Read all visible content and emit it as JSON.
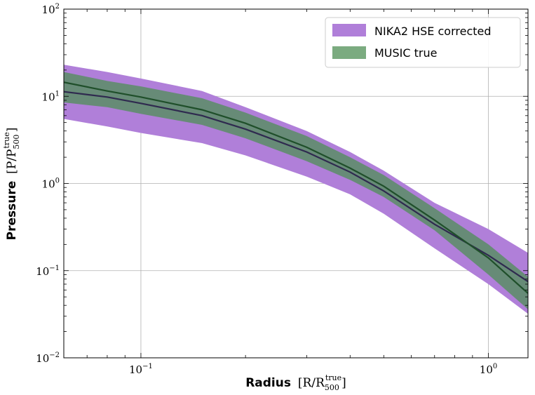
{
  "chart_data": {
    "type": "area",
    "x_scale": "log",
    "y_scale": "log",
    "xlim": [
      0.06,
      1.3
    ],
    "ylim": [
      0.01,
      100
    ],
    "grid": true,
    "legend_position": "top-right",
    "xlabel": {
      "word": "Radius",
      "math": "[R/R",
      "math_end": "]",
      "sub": "500",
      "sup": "true"
    },
    "ylabel": {
      "word": "Pressure",
      "math": "[P/P",
      "math_end": "]",
      "sub": "500",
      "sup": "true"
    },
    "x_ticks": [
      {
        "value": 0.1,
        "base": "10",
        "exp": "−1"
      },
      {
        "value": 1,
        "base": "10",
        "exp": "0"
      }
    ],
    "y_ticks": [
      {
        "value": 0.01,
        "base": "10",
        "exp": "−2"
      },
      {
        "value": 0.1,
        "base": "10",
        "exp": "−1"
      },
      {
        "value": 1,
        "base": "10",
        "exp": "0"
      },
      {
        "value": 10,
        "base": "10",
        "exp": "1"
      },
      {
        "value": 100,
        "base": "10",
        "exp": "2"
      }
    ],
    "series": [
      {
        "name": "NIKA2 HSE corrected",
        "kind": "band",
        "color": "#b07fd9",
        "x": [
          0.06,
          0.08,
          0.1,
          0.15,
          0.2,
          0.3,
          0.4,
          0.5,
          0.7,
          1.0,
          1.3
        ],
        "upper": [
          23,
          19,
          16,
          11.5,
          7.5,
          4.0,
          2.3,
          1.4,
          0.6,
          0.3,
          0.16
        ],
        "lower": [
          5.5,
          4.5,
          3.8,
          2.9,
          2.1,
          1.2,
          0.75,
          0.45,
          0.18,
          0.07,
          0.032
        ],
        "median_color": "#2f2a4f",
        "median": [
          11.3,
          9.8,
          8.3,
          6.0,
          4.2,
          2.3,
          1.35,
          0.82,
          0.34,
          0.15,
          0.075
        ]
      },
      {
        "name": "MUSIC true",
        "kind": "band",
        "color": "#4f8f55",
        "opacity": 0.75,
        "x": [
          0.06,
          0.08,
          0.1,
          0.15,
          0.2,
          0.3,
          0.4,
          0.5,
          0.7,
          1.0,
          1.3
        ],
        "upper": [
          19,
          15,
          13,
          9.5,
          6.5,
          3.5,
          2.0,
          1.25,
          0.52,
          0.2,
          0.085
        ],
        "lower": [
          8.5,
          7.5,
          6.3,
          4.7,
          3.3,
          1.8,
          1.1,
          0.7,
          0.29,
          0.09,
          0.036
        ],
        "median_color": "#1f4f2a",
        "median": [
          14.5,
          11.5,
          9.8,
          7.0,
          4.9,
          2.6,
          1.5,
          0.93,
          0.38,
          0.14,
          0.055
        ]
      }
    ]
  }
}
